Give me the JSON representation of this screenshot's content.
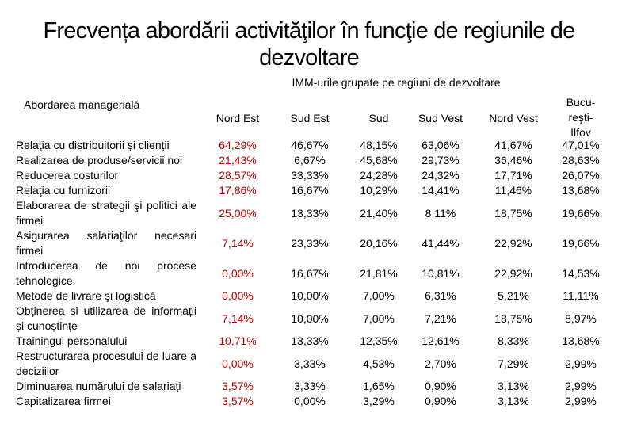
{
  "title": {
    "line1": "Frecvența abordării activităţilor în funcţie de regiunile de",
    "line2": "dezvoltare"
  },
  "group_header": "IMM-urile grupate pe regiuni de dezvoltare",
  "row_header": "Abordarea managerială",
  "columns": [
    {
      "line1": "Nord Est",
      "line2": "",
      "line3": ""
    },
    {
      "line1": "Sud Est",
      "line2": "",
      "line3": ""
    },
    {
      "line1": "Sud",
      "line2": "",
      "line3": ""
    },
    {
      "line1": "Sud Vest",
      "line2": "",
      "line3": ""
    },
    {
      "line1": "Nord Vest",
      "line2": "",
      "line3": ""
    },
    {
      "line1": "Bucu-",
      "line2": "reşti-",
      "line3": "Ilfov"
    }
  ],
  "rows": [
    {
      "label": "Relaţia cu distribuitorii și clienții",
      "values": [
        "64,29%",
        "46,67%",
        "48,15%",
        "63,06%",
        "41,67%",
        "47,01%"
      ]
    },
    {
      "label": "Realizarea de produse/servicii noi",
      "values": [
        "21,43%",
        "6,67%",
        "45,68%",
        "29,73%",
        "36,46%",
        "28,63%"
      ]
    },
    {
      "label": "Reducerea costurilor",
      "values": [
        "28,57%",
        "33,33%",
        "24,28%",
        "24,32%",
        "17,71%",
        "26,07%"
      ]
    },
    {
      "label": "Relaţia cu furnizorii",
      "values": [
        "17,86%",
        "16,67%",
        "10,29%",
        "14,41%",
        "11,46%",
        "13,68%"
      ]
    },
    {
      "label": "Elaborarea de strategii şi politici ale firmei",
      "values": [
        "25,00%",
        "13,33%",
        "21,40%",
        "8,11%",
        "18,75%",
        "19,66%"
      ]
    },
    {
      "label": "Asigurarea salariaţilor necesari firmei",
      "values": [
        "7,14%",
        "23,33%",
        "20,16%",
        "41,44%",
        "22,92%",
        "19,66%"
      ]
    },
    {
      "label": "Introducerea de noi procese tehnologice",
      "values": [
        "0,00%",
        "16,67%",
        "21,81%",
        "10,81%",
        "22,92%",
        "14,53%"
      ]
    },
    {
      "label": "Metode de livrare şi logistică",
      "values": [
        "0,00%",
        "10,00%",
        "7,00%",
        "6,31%",
        "5,21%",
        "11,11%"
      ]
    },
    {
      "label": "Obţinerea si utilizarea de informații și cunoștințe",
      "values": [
        "7,14%",
        "10,00%",
        "7,00%",
        "7,21%",
        "18,75%",
        "8,97%"
      ]
    },
    {
      "label": "Trainingul personalului",
      "values": [
        "10,71%",
        "13,33%",
        "12,35%",
        "12,61%",
        "8,33%",
        "13,68%"
      ]
    },
    {
      "label": "Restructurarea procesului de luare a deciziilor",
      "values": [
        "0,00%",
        "3,33%",
        "4,53%",
        "2,70%",
        "7,29%",
        "2,99%"
      ]
    },
    {
      "label": "Diminuarea numărului de salariaţi",
      "values": [
        "3,57%",
        "3,33%",
        "1,65%",
        "0,90%",
        "3,13%",
        "2,99%"
      ]
    },
    {
      "label": "Capitalizarea firmei",
      "values": [
        "3,57%",
        "0,00%",
        "3,29%",
        "0,90%",
        "3,13%",
        "2,99%"
      ]
    }
  ],
  "colors": {
    "highlight": "#c00000",
    "text": "#000000"
  }
}
